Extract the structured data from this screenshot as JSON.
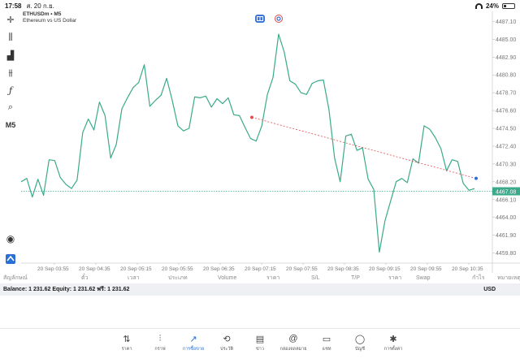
{
  "status": {
    "time": "17:58",
    "date": "ส. 20 ก.ย.",
    "battery": "24%"
  },
  "chart": {
    "symbol_line": "ETHUSDm • M5",
    "description": "Ethereum vs US Dollar",
    "current_price": "4467.08",
    "price_labels": [
      "4487.10",
      "4485.00",
      "4482.90",
      "4480.80",
      "4478.70",
      "4476.60",
      "4474.50",
      "4472.40",
      "4470.30",
      "4468.20",
      "4466.10",
      "4464.00",
      "4461.90",
      "4459.80"
    ],
    "time_labels": [
      "20 Sep 03:55",
      "20 Sep 04:35",
      "20 Sep 05:15",
      "20 Sep 05:55",
      "20 Sep 06:35",
      "20 Sep 07:15",
      "20 Sep 07:55",
      "20 Sep 08:35",
      "20 Sep 09:15",
      "20 Sep 09:55",
      "20 Sep 10:35"
    ],
    "colors": {
      "line": "#3aaa8a",
      "bid_line": "#3aaa8a",
      "trend": "#e05050",
      "price_tag": "#3aaa8a"
    }
  },
  "chart_data": {
    "type": "line",
    "ylim": [
      4458.8,
      4488.1
    ],
    "values": [
      4468.2,
      4468.6,
      4466.4,
      4468.5,
      4466.6,
      4470.8,
      4470.7,
      4468.7,
      4467.9,
      4467.4,
      4468.4,
      4474.0,
      4475.6,
      4474.3,
      4477.6,
      4476.0,
      4471.0,
      4472.6,
      4476.8,
      4478.1,
      4479.3,
      4479.9,
      4482.0,
      4477.1,
      4477.8,
      4478.4,
      4480.4,
      4477.8,
      4474.8,
      4474.2,
      4474.5,
      4478.2,
      4478.1,
      4478.3,
      4477.0,
      4478.0,
      4477.4,
      4478.1,
      4476.1,
      4476.0,
      4474.6,
      4473.3,
      4473.0,
      4474.8,
      4478.5,
      4480.5,
      4485.6,
      4483.5,
      4480.1,
      4479.7,
      4478.7,
      4478.5,
      4479.8,
      4480.1,
      4480.2,
      4476.7,
      4471.0,
      4468.2,
      4473.6,
      4473.8,
      4471.9,
      4472.2,
      4468.5,
      4467.3,
      4459.9,
      4463.6,
      4465.9,
      4468.2,
      4468.6,
      4468.1,
      4470.9,
      4470.4,
      4474.8,
      4474.4,
      4473.4,
      4472.1,
      4469.5,
      4470.8,
      4470.6,
      4468.0,
      4467.2,
      4467.4
    ]
  },
  "tools": {
    "crosshair": "crosshair-icon",
    "candles": "candles-icon",
    "bars": "bar-chart-icon",
    "indicators": "indicators-icon",
    "function": "function-icon",
    "objects": "objects-icon",
    "timeframe": "M5",
    "zoom": "zoom-icon",
    "logo": "app-logo-icon"
  },
  "columns": [
    "สัญลักษณ์",
    "ตั๋ว",
    "เวลา",
    "ประเภท",
    "Volume",
    "ราคา",
    "S/L",
    "T/P",
    "ราคา",
    "Swap",
    "กำไร",
    "หมายเหตุ"
  ],
  "balance": {
    "text": "Balance: 1 231.62  Equity: 1 231.62  ฟรี: 1 231.62",
    "currency": "USD"
  },
  "tabs": [
    {
      "label": "ราคา",
      "icon": "quotes-icon",
      "glyph": "⇅"
    },
    {
      "label": "กราฟ",
      "icon": "chart-candles-icon",
      "glyph": "⫶"
    },
    {
      "label": "การซื้อขาย",
      "icon": "trade-icon",
      "glyph": "↗"
    },
    {
      "label": "ประวัติ",
      "icon": "history-icon",
      "glyph": "⟲"
    },
    {
      "label": "ข่าว",
      "icon": "news-icon",
      "glyph": "▤"
    },
    {
      "label": "กล่องจดหมาย",
      "icon": "mailbox-icon",
      "glyph": "@"
    },
    {
      "label": "แชท",
      "icon": "chat-icon",
      "glyph": "▭"
    },
    {
      "label": "บัญชี",
      "icon": "account-icon",
      "glyph": "◯"
    },
    {
      "label": "การตั้งค่า",
      "icon": "settings-icon",
      "glyph": "✱"
    }
  ],
  "active_tab": 2
}
